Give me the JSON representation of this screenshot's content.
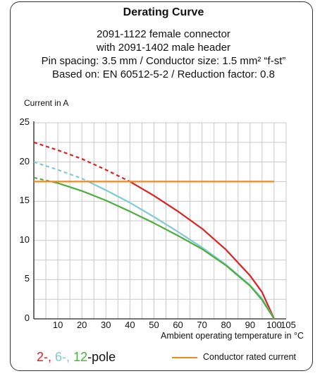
{
  "chart_data": {
    "type": "line",
    "title": "Derating Curve",
    "subtitle_lines": [
      "2091-1122 female connector",
      "with 2091-1402 male header",
      "Pin spacing: 3.5 mm / Conductor size: 1.5 mm² “f-st”",
      "Based on: EN 60512-5-2 / Reduction factor: 0.8"
    ],
    "ylabel": "Current in A",
    "xlabel": "Ambient operating temperature in  °C",
    "xlim": [
      0,
      105
    ],
    "ylim": [
      0,
      25
    ],
    "xticks": [
      10,
      20,
      30,
      40,
      50,
      60,
      70,
      80,
      90,
      100,
      105
    ],
    "yticks": [
      0,
      5,
      10,
      15,
      20,
      25
    ],
    "grid": true,
    "series": [
      {
        "name": "2-pole",
        "color": "#e02020",
        "x": [
          0,
          10,
          20,
          30,
          40,
          50,
          60,
          70,
          80,
          90,
          95,
          100
        ],
        "y": [
          22.5,
          21.5,
          20.4,
          19.0,
          17.5,
          15.7,
          13.7,
          11.5,
          8.8,
          5.5,
          3.4,
          0
        ],
        "dashed_until_x": 40
      },
      {
        "name": "6-pole",
        "color": "#7ecbd6",
        "x": [
          0,
          10,
          20,
          30,
          40,
          50,
          60,
          70,
          80,
          90,
          95,
          100
        ],
        "y": [
          20.0,
          19.0,
          17.9,
          16.4,
          14.8,
          13.0,
          11.1,
          9.1,
          6.9,
          4.3,
          2.6,
          0
        ],
        "dashed_until_x": 22
      },
      {
        "name": "12-pole",
        "color": "#4caf3c",
        "x": [
          0,
          10,
          20,
          30,
          40,
          50,
          60,
          70,
          80,
          90,
          95,
          100
        ],
        "y": [
          18.0,
          17.3,
          16.3,
          15.1,
          13.7,
          12.2,
          10.6,
          8.9,
          6.8,
          4.2,
          2.4,
          0
        ],
        "dashed_until_x": 8
      },
      {
        "name": "Conductor rated current",
        "color": "#f08a1c",
        "x": [
          0,
          100
        ],
        "y": [
          17.5,
          17.5
        ],
        "dashed_until_x": 0
      }
    ],
    "legend": {
      "pole_prefixes": [
        {
          "text": "2-,",
          "color": "#e02020"
        },
        {
          "text": "6-,",
          "color": "#7ecbd6"
        },
        {
          "text": "12",
          "color": "#4caf3c"
        }
      ],
      "pole_suffix": "-pole",
      "rated_label": "Conductor rated current",
      "rated_color": "#f08a1c"
    }
  }
}
